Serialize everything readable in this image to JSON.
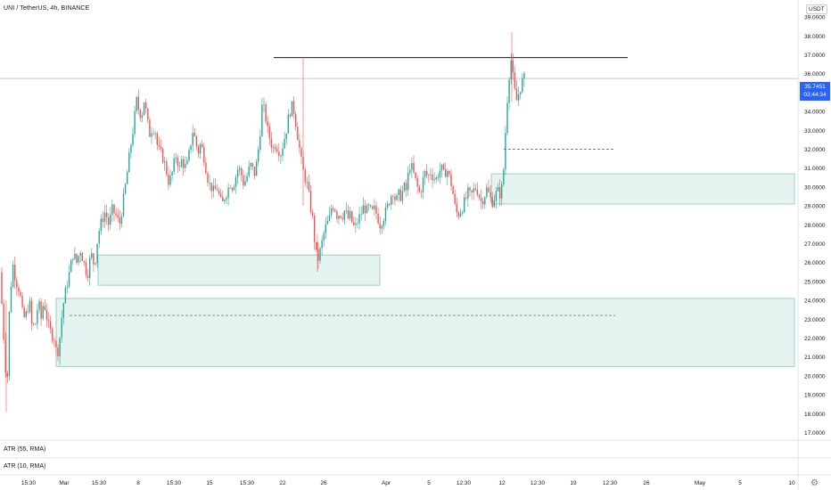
{
  "header": {
    "title": "UNI / TetherUS, 4h, BINANCE"
  },
  "currency": "USDT",
  "last_price": {
    "value": "35.7451",
    "countdown": "03:44:34"
  },
  "indicators": [
    {
      "label": "ATR (55, RMA)"
    },
    {
      "label": "ATR (10, RMA)"
    }
  ],
  "colors": {
    "up": "#26a69a",
    "down": "#ef5350",
    "zone_fill": "#e6f4f1",
    "zone_border": "#7fc7b7",
    "price_line": "#2962ff",
    "resistance": "#131722"
  },
  "chart_data": {
    "type": "candlestick",
    "title": "UNI / TetherUS, 4h, BINANCE",
    "ylabel": "USDT",
    "ylim": [
      16.6,
      39.9
    ],
    "y_ticks": [
      "39.0000",
      "38.0000",
      "37.0000",
      "36.0000",
      "34.0000",
      "33.0000",
      "32.0000",
      "31.0000",
      "30.0000",
      "29.0000",
      "28.0000",
      "27.0000",
      "26.0000",
      "25.0000",
      "24.0000",
      "23.0000",
      "22.0000",
      "21.0000",
      "20.0000",
      "19.0000",
      "18.0000",
      "17.0000"
    ],
    "x_ticks": [
      "15:30",
      "Mar",
      "15:30",
      "8",
      "15:30",
      "15",
      "15:30",
      "22",
      "26",
      "Apr",
      "5",
      "12:30",
      "12",
      "12:30",
      "19",
      "12:30",
      "26",
      "May",
      "5",
      "10"
    ],
    "grid": false,
    "last_price": 35.7451,
    "resistance_level": 36.85,
    "dashed_levels": [
      32.0,
      23.2
    ],
    "zones": [
      {
        "low": 24.8,
        "high": 26.4
      },
      {
        "low": 29.1,
        "high": 30.7
      },
      {
        "low": 20.5,
        "high": 24.1
      }
    ],
    "price_path": [
      [
        0,
        25.5
      ],
      [
        3,
        23.0
      ],
      [
        6,
        20.5
      ],
      [
        8,
        19.5
      ],
      [
        10,
        23.0
      ],
      [
        14,
        26.0
      ],
      [
        18,
        25.0
      ],
      [
        22,
        24.5
      ],
      [
        26,
        23.0
      ],
      [
        30,
        23.3
      ],
      [
        33,
        24.0
      ],
      [
        36,
        22.5
      ],
      [
        40,
        22.8
      ],
      [
        43,
        24.0
      ],
      [
        46,
        23.0
      ],
      [
        49,
        24.0
      ],
      [
        52,
        23.2
      ],
      [
        55,
        22.5
      ],
      [
        58,
        22.2
      ],
      [
        61,
        22.0
      ],
      [
        64,
        21.0
      ],
      [
        67,
        22.0
      ],
      [
        70,
        23.5
      ],
      [
        74,
        24.6
      ],
      [
        78,
        25.5
      ],
      [
        82,
        26.5
      ],
      [
        86,
        26.0
      ],
      [
        90,
        26.7
      ],
      [
        94,
        26.0
      ],
      [
        98,
        25.3
      ],
      [
        102,
        26.5
      ],
      [
        106,
        25.8
      ],
      [
        110,
        27.5
      ],
      [
        114,
        28.2
      ],
      [
        118,
        28.7
      ],
      [
        122,
        28.0
      ],
      [
        126,
        28.8
      ],
      [
        130,
        28.5
      ],
      [
        134,
        28.0
      ],
      [
        138,
        29.2
      ],
      [
        142,
        30.5
      ],
      [
        146,
        32.0
      ],
      [
        150,
        33.3
      ],
      [
        153,
        34.6
      ],
      [
        156,
        34.0
      ],
      [
        159,
        33.8
      ],
      [
        162,
        34.7
      ],
      [
        165,
        33.5
      ],
      [
        168,
        32.8
      ],
      [
        171,
        33.2
      ],
      [
        174,
        33.0
      ],
      [
        177,
        32.0
      ],
      [
        180,
        31.8
      ],
      [
        183,
        31.5
      ],
      [
        186,
        31.0
      ],
      [
        189,
        30.3
      ],
      [
        192,
        30.5
      ],
      [
        195,
        31.2
      ],
      [
        198,
        31.8
      ],
      [
        201,
        30.8
      ],
      [
        204,
        31.5
      ],
      [
        207,
        31.0
      ],
      [
        210,
        31.2
      ],
      [
        213,
        32.0
      ],
      [
        216,
        33.0
      ],
      [
        219,
        32.5
      ],
      [
        222,
        31.8
      ],
      [
        225,
        32.3
      ],
      [
        228,
        31.8
      ],
      [
        231,
        31.0
      ],
      [
        234,
        30.2
      ],
      [
        237,
        30.0
      ],
      [
        240,
        29.7
      ],
      [
        243,
        30.0
      ],
      [
        246,
        29.5
      ],
      [
        249,
        29.0
      ],
      [
        252,
        29.5
      ],
      [
        255,
        29.8
      ],
      [
        258,
        30.2
      ],
      [
        261,
        30.0
      ],
      [
        264,
        30.5
      ],
      [
        267,
        31.0
      ],
      [
        270,
        30.8
      ],
      [
        273,
        30.2
      ],
      [
        276,
        30.4
      ],
      [
        279,
        30.9
      ],
      [
        282,
        31.2
      ],
      [
        285,
        30.6
      ],
      [
        288,
        31.3
      ],
      [
        291,
        32.5
      ],
      [
        294,
        34.3
      ],
      [
        297,
        34.0
      ],
      [
        300,
        33.0
      ],
      [
        303,
        32.5
      ],
      [
        306,
        32.0
      ],
      [
        309,
        32.3
      ],
      [
        312,
        32.0
      ],
      [
        315,
        31.8
      ],
      [
        318,
        32.4
      ],
      [
        321,
        33.0
      ],
      [
        324,
        33.8
      ],
      [
        327,
        34.3
      ],
      [
        330,
        34.0
      ],
      [
        333,
        33.0
      ],
      [
        336,
        32.0
      ],
      [
        339,
        31.0
      ],
      [
        342,
        30.5
      ],
      [
        345,
        30.0
      ],
      [
        348,
        29.0
      ],
      [
        351,
        28.2
      ],
      [
        354,
        26.5
      ],
      [
        357,
        26.2
      ],
      [
        360,
        26.8
      ],
      [
        363,
        27.5
      ],
      [
        366,
        28.0
      ],
      [
        369,
        28.2
      ],
      [
        372,
        29.0
      ],
      [
        375,
        29.0
      ],
      [
        378,
        28.5
      ],
      [
        381,
        28.6
      ],
      [
        384,
        28.5
      ],
      [
        387,
        28.8
      ],
      [
        390,
        28.3
      ],
      [
        393,
        28.5
      ],
      [
        396,
        27.9
      ],
      [
        399,
        27.9
      ],
      [
        402,
        28.3
      ],
      [
        405,
        28.6
      ],
      [
        408,
        29.0
      ],
      [
        411,
        28.7
      ],
      [
        414,
        28.9
      ],
      [
        417,
        28.6
      ],
      [
        420,
        28.8
      ],
      [
        423,
        28.5
      ],
      [
        426,
        28.0
      ],
      [
        429,
        28.3
      ],
      [
        432,
        28.6
      ],
      [
        435,
        29.0
      ],
      [
        438,
        29.5
      ],
      [
        441,
        29.8
      ],
      [
        444,
        29.2
      ],
      [
        447,
        29.6
      ],
      [
        450,
        29.5
      ],
      [
        453,
        30.0
      ],
      [
        456,
        29.8
      ],
      [
        459,
        31.2
      ],
      [
        462,
        31.0
      ],
      [
        465,
        30.5
      ],
      [
        468,
        30.0
      ],
      [
        471,
        29.6
      ],
      [
        474,
        30.3
      ],
      [
        477,
        30.8
      ],
      [
        480,
        30.5
      ],
      [
        483,
        30.8
      ],
      [
        486,
        30.5
      ],
      [
        489,
        30.4
      ],
      [
        492,
        30.8
      ],
      [
        495,
        31.0
      ],
      [
        498,
        30.6
      ],
      [
        501,
        31.0
      ],
      [
        504,
        30.5
      ],
      [
        507,
        30.0
      ],
      [
        510,
        29.0
      ],
      [
        513,
        28.5
      ],
      [
        516,
        28.7
      ],
      [
        519,
        29.0
      ],
      [
        522,
        29.3
      ],
      [
        525,
        29.7
      ],
      [
        528,
        29.5
      ],
      [
        531,
        29.8
      ],
      [
        534,
        30.0
      ],
      [
        537,
        29.6
      ],
      [
        540,
        29.2
      ],
      [
        543,
        29.5
      ],
      [
        546,
        29.9
      ],
      [
        549,
        29.5
      ],
      [
        552,
        29.2
      ],
      [
        555,
        29.5
      ],
      [
        558,
        29.8
      ],
      [
        561,
        29.6
      ],
      [
        564,
        30.2
      ],
      [
        567,
        33.0
      ],
      [
        570,
        35.5
      ],
      [
        573,
        36.8
      ],
      [
        576,
        35.5
      ],
      [
        579,
        34.5
      ],
      [
        582,
        35.0
      ],
      [
        585,
        35.5
      ],
      [
        588,
        35.75
      ]
    ]
  }
}
